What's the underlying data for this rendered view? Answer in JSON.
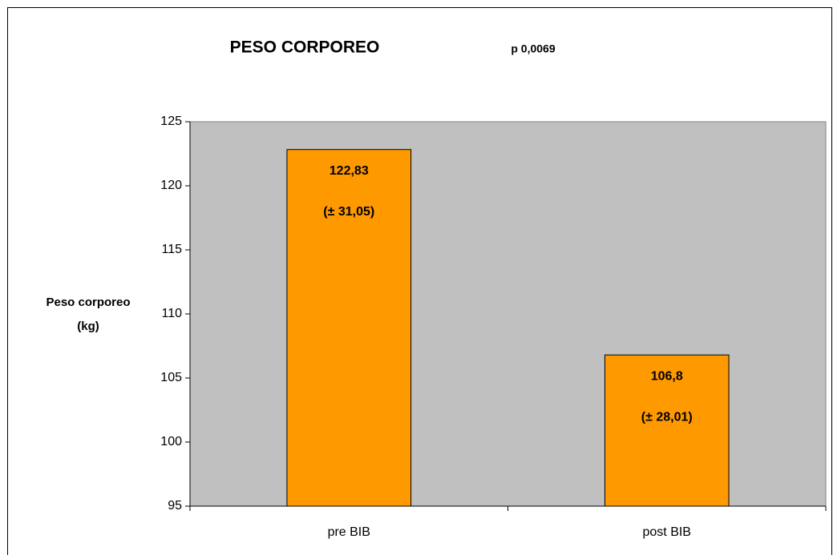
{
  "chart_data": {
    "type": "bar",
    "title": "PESO CORPOREO",
    "annotation": "p 0,0069",
    "y_label": [
      "Peso corporeo",
      "(kg)"
    ],
    "categories": [
      "pre BIB",
      "post BIB"
    ],
    "values": [
      122.83,
      106.8
    ],
    "value_labels": [
      "122,83",
      "106,8"
    ],
    "error_labels": [
      "(± 31,05)",
      "(± 28,01)"
    ],
    "color": "#ff9900",
    "plot_background": "#c0c0c0",
    "ylim": [
      95,
      125
    ],
    "yticks": [
      95,
      100,
      105,
      110,
      115,
      120,
      125
    ],
    "grid": false
  }
}
